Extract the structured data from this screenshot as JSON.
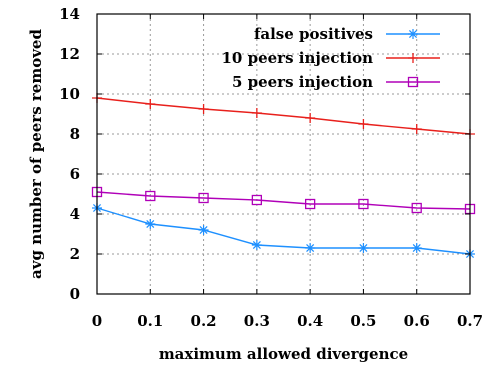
{
  "chart_data": {
    "type": "line",
    "xlabel": "maximum allowed divergence",
    "ylabel": "avg number of peers removed",
    "xlim": [
      0,
      0.7
    ],
    "ylim": [
      0,
      14
    ],
    "xticks": [
      "0",
      "0.1",
      "0.2",
      "0.3",
      "0.4",
      "0.5",
      "0.6",
      "0.7"
    ],
    "yticks": [
      "0",
      "2",
      "4",
      "6",
      "8",
      "10",
      "12",
      "14"
    ],
    "grid": true,
    "legend_position": "top-right",
    "x": [
      0,
      0.1,
      0.2,
      0.3,
      0.4,
      0.5,
      0.6,
      0.7
    ],
    "series": [
      {
        "name": "false positives",
        "color": "#1e90ff",
        "marker": "asterisk",
        "values": [
          4.3,
          3.5,
          3.2,
          2.45,
          2.3,
          2.3,
          2.3,
          2.0
        ]
      },
      {
        "name": "10 peers injection",
        "color": "#e8201c",
        "marker": "plus",
        "values": [
          9.8,
          9.5,
          9.25,
          9.05,
          8.8,
          8.5,
          8.25,
          8.0
        ]
      },
      {
        "name": "5 peers injection",
        "color": "#b000b8",
        "marker": "square",
        "values": [
          5.1,
          4.9,
          4.8,
          4.7,
          4.5,
          4.5,
          4.3,
          4.25
        ]
      }
    ]
  }
}
